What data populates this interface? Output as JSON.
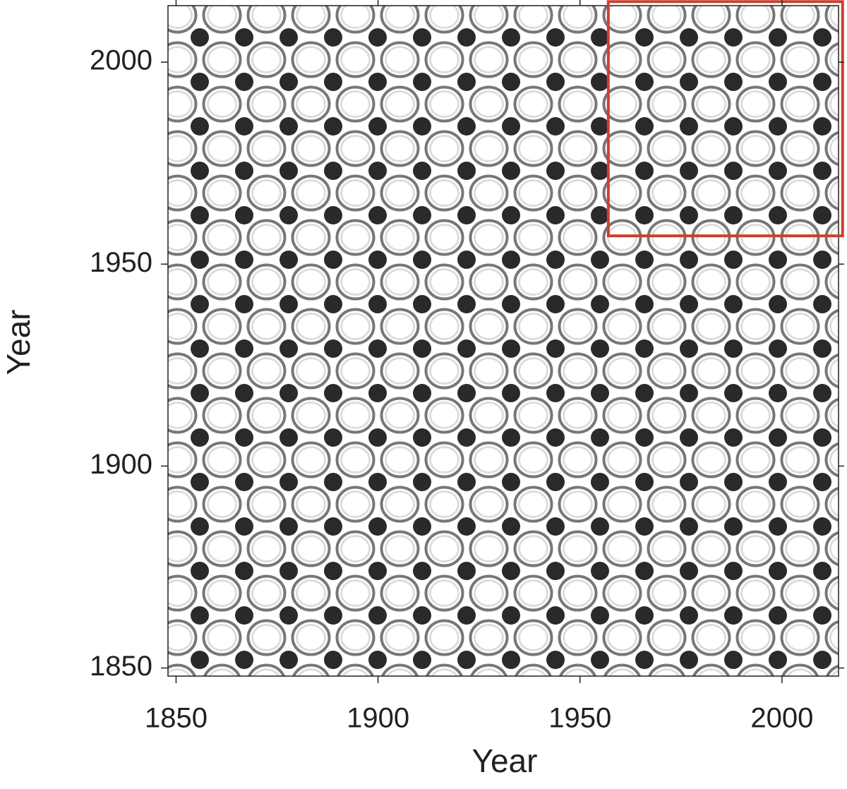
{
  "chart_data": {
    "type": "recurrence",
    "x_label": "Year",
    "y_label": "Year",
    "xlim": [
      1848,
      2014
    ],
    "ylim": [
      1848,
      2014
    ],
    "xticks": [
      1850,
      1900,
      1950,
      2000
    ],
    "yticks": [
      1850,
      1900,
      1950,
      2000
    ],
    "highlight": {
      "x": [
        1957,
        2015
      ],
      "y": [
        1957,
        2015
      ],
      "color": "#c8412f"
    }
  }
}
